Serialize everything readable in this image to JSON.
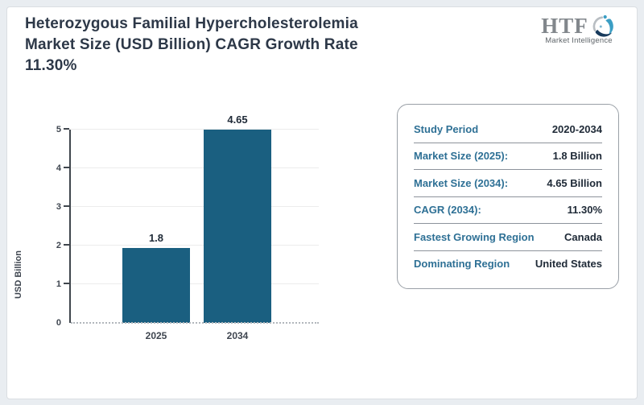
{
  "header": {
    "title_lines": [
      "Heterozygous Familial Hypercholesterolemia",
      "Market Size (USD Billion) CAGR Growth Rate",
      "11.30%"
    ]
  },
  "logo": {
    "text": "HTF",
    "subtitle": "Market Intelligence"
  },
  "chart_data": {
    "type": "bar",
    "categories": [
      "2025",
      "2034"
    ],
    "values": [
      1.8,
      4.65
    ],
    "display_heights": [
      1.93,
      5
    ],
    "title": "",
    "xlabel": "",
    "ylabel": "USD Billion",
    "yticks": [
      0,
      1,
      2,
      3,
      4,
      5
    ],
    "ylim": [
      0,
      5
    ],
    "grid": "horizontal-light",
    "legend": "none",
    "bar_color": "#1a5f80"
  },
  "info_panel": {
    "rows": [
      {
        "label": "Study Period",
        "value": "2020-2034"
      },
      {
        "label": "Market Size (2025):",
        "value": "1.8 Billion"
      },
      {
        "label": "Market Size (2034):",
        "value": "4.65 Billion"
      },
      {
        "label": "CAGR (2034):",
        "value": "11.30%"
      },
      {
        "label": "Fastest Growing Region",
        "value": "Canada"
      },
      {
        "label": "Dominating Region",
        "value": "United States"
      }
    ]
  },
  "colors": {
    "bar": "#1a5f80",
    "label_teal": "#2e7095",
    "value_dark": "#202b38",
    "title_dark": "#2d3848",
    "frame_bg": "#e9edf1"
  }
}
